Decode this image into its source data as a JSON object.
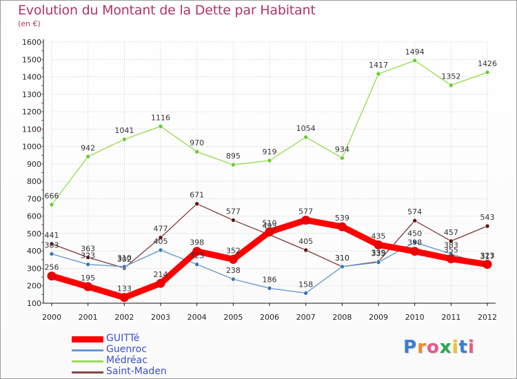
{
  "title": "Evolution du Montant de la Dette par Habitant",
  "subtitle": "(en €)",
  "logo_text": "Proxiti",
  "colors": {
    "title": "#b0336a",
    "grid": "#c8c8c8",
    "axis": "#111111",
    "legend_text": "#3a4fd6"
  },
  "chart_data": {
    "type": "line",
    "title": "Evolution du Montant de la Dette par Habitant",
    "subtitle": "(en €)",
    "x": [
      "2000",
      "2001",
      "2002",
      "2003",
      "2004",
      "2005",
      "2006",
      "2007",
      "2008",
      "2009",
      "2010",
      "2011",
      "2012"
    ],
    "ylim": [
      100,
      1600
    ],
    "yticks": [
      100,
      200,
      300,
      400,
      500,
      600,
      700,
      800,
      900,
      1000,
      1100,
      1200,
      1300,
      1400,
      1500,
      1600
    ],
    "grid": true,
    "legend_position": "bottom-left",
    "series": [
      {
        "name": "Médréac",
        "color": "#99dd55",
        "marker": "#66cc33",
        "values": [
          666,
          942,
          1041,
          1116,
          970,
          895,
          919,
          1054,
          934,
          1417,
          1494,
          1352,
          1426
        ],
        "labels": [
          "666",
          "942",
          "1041",
          "1116",
          "970",
          "895",
          "919",
          "1054",
          "934",
          "1417",
          "1494",
          "1352",
          "1426"
        ]
      },
      {
        "name": "Saint-Maden",
        "color": "#884444",
        "marker": "#661111",
        "values": [
          441,
          363,
          302,
          477,
          671,
          577,
          493,
          405,
          310,
          339,
          574,
          457,
          543
        ],
        "labels": [
          "441",
          "363",
          "302",
          "477",
          "671",
          "577",
          "493",
          "405",
          "310",
          "339",
          "574",
          "457",
          "543"
        ]
      },
      {
        "name": "Guenroc",
        "color": "#6699cc",
        "marker": "#3377bb",
        "values": [
          383,
          323,
          310,
          405,
          323,
          238,
          186,
          158,
          310,
          335,
          450,
          383,
          317
        ],
        "labels": [
          "383",
          "323",
          "310",
          "405",
          "323",
          "238",
          "186",
          "158",
          "310",
          "335",
          "450",
          "383",
          "317"
        ]
      },
      {
        "name": "GUITTé",
        "color": "#ff0000",
        "marker": "#ee0000",
        "values": [
          256,
          195,
          133,
          214,
          398,
          352,
          510,
          577,
          539,
          435,
          398,
          355,
          323
        ],
        "labels": [
          "256",
          "195",
          "133",
          "214",
          "398",
          "352",
          "510",
          "577",
          "539",
          "435",
          "398",
          "355",
          "323"
        ]
      }
    ],
    "legend_order": [
      "GUITTé",
      "Guenroc",
      "Médréac",
      "Saint-Maden"
    ]
  }
}
